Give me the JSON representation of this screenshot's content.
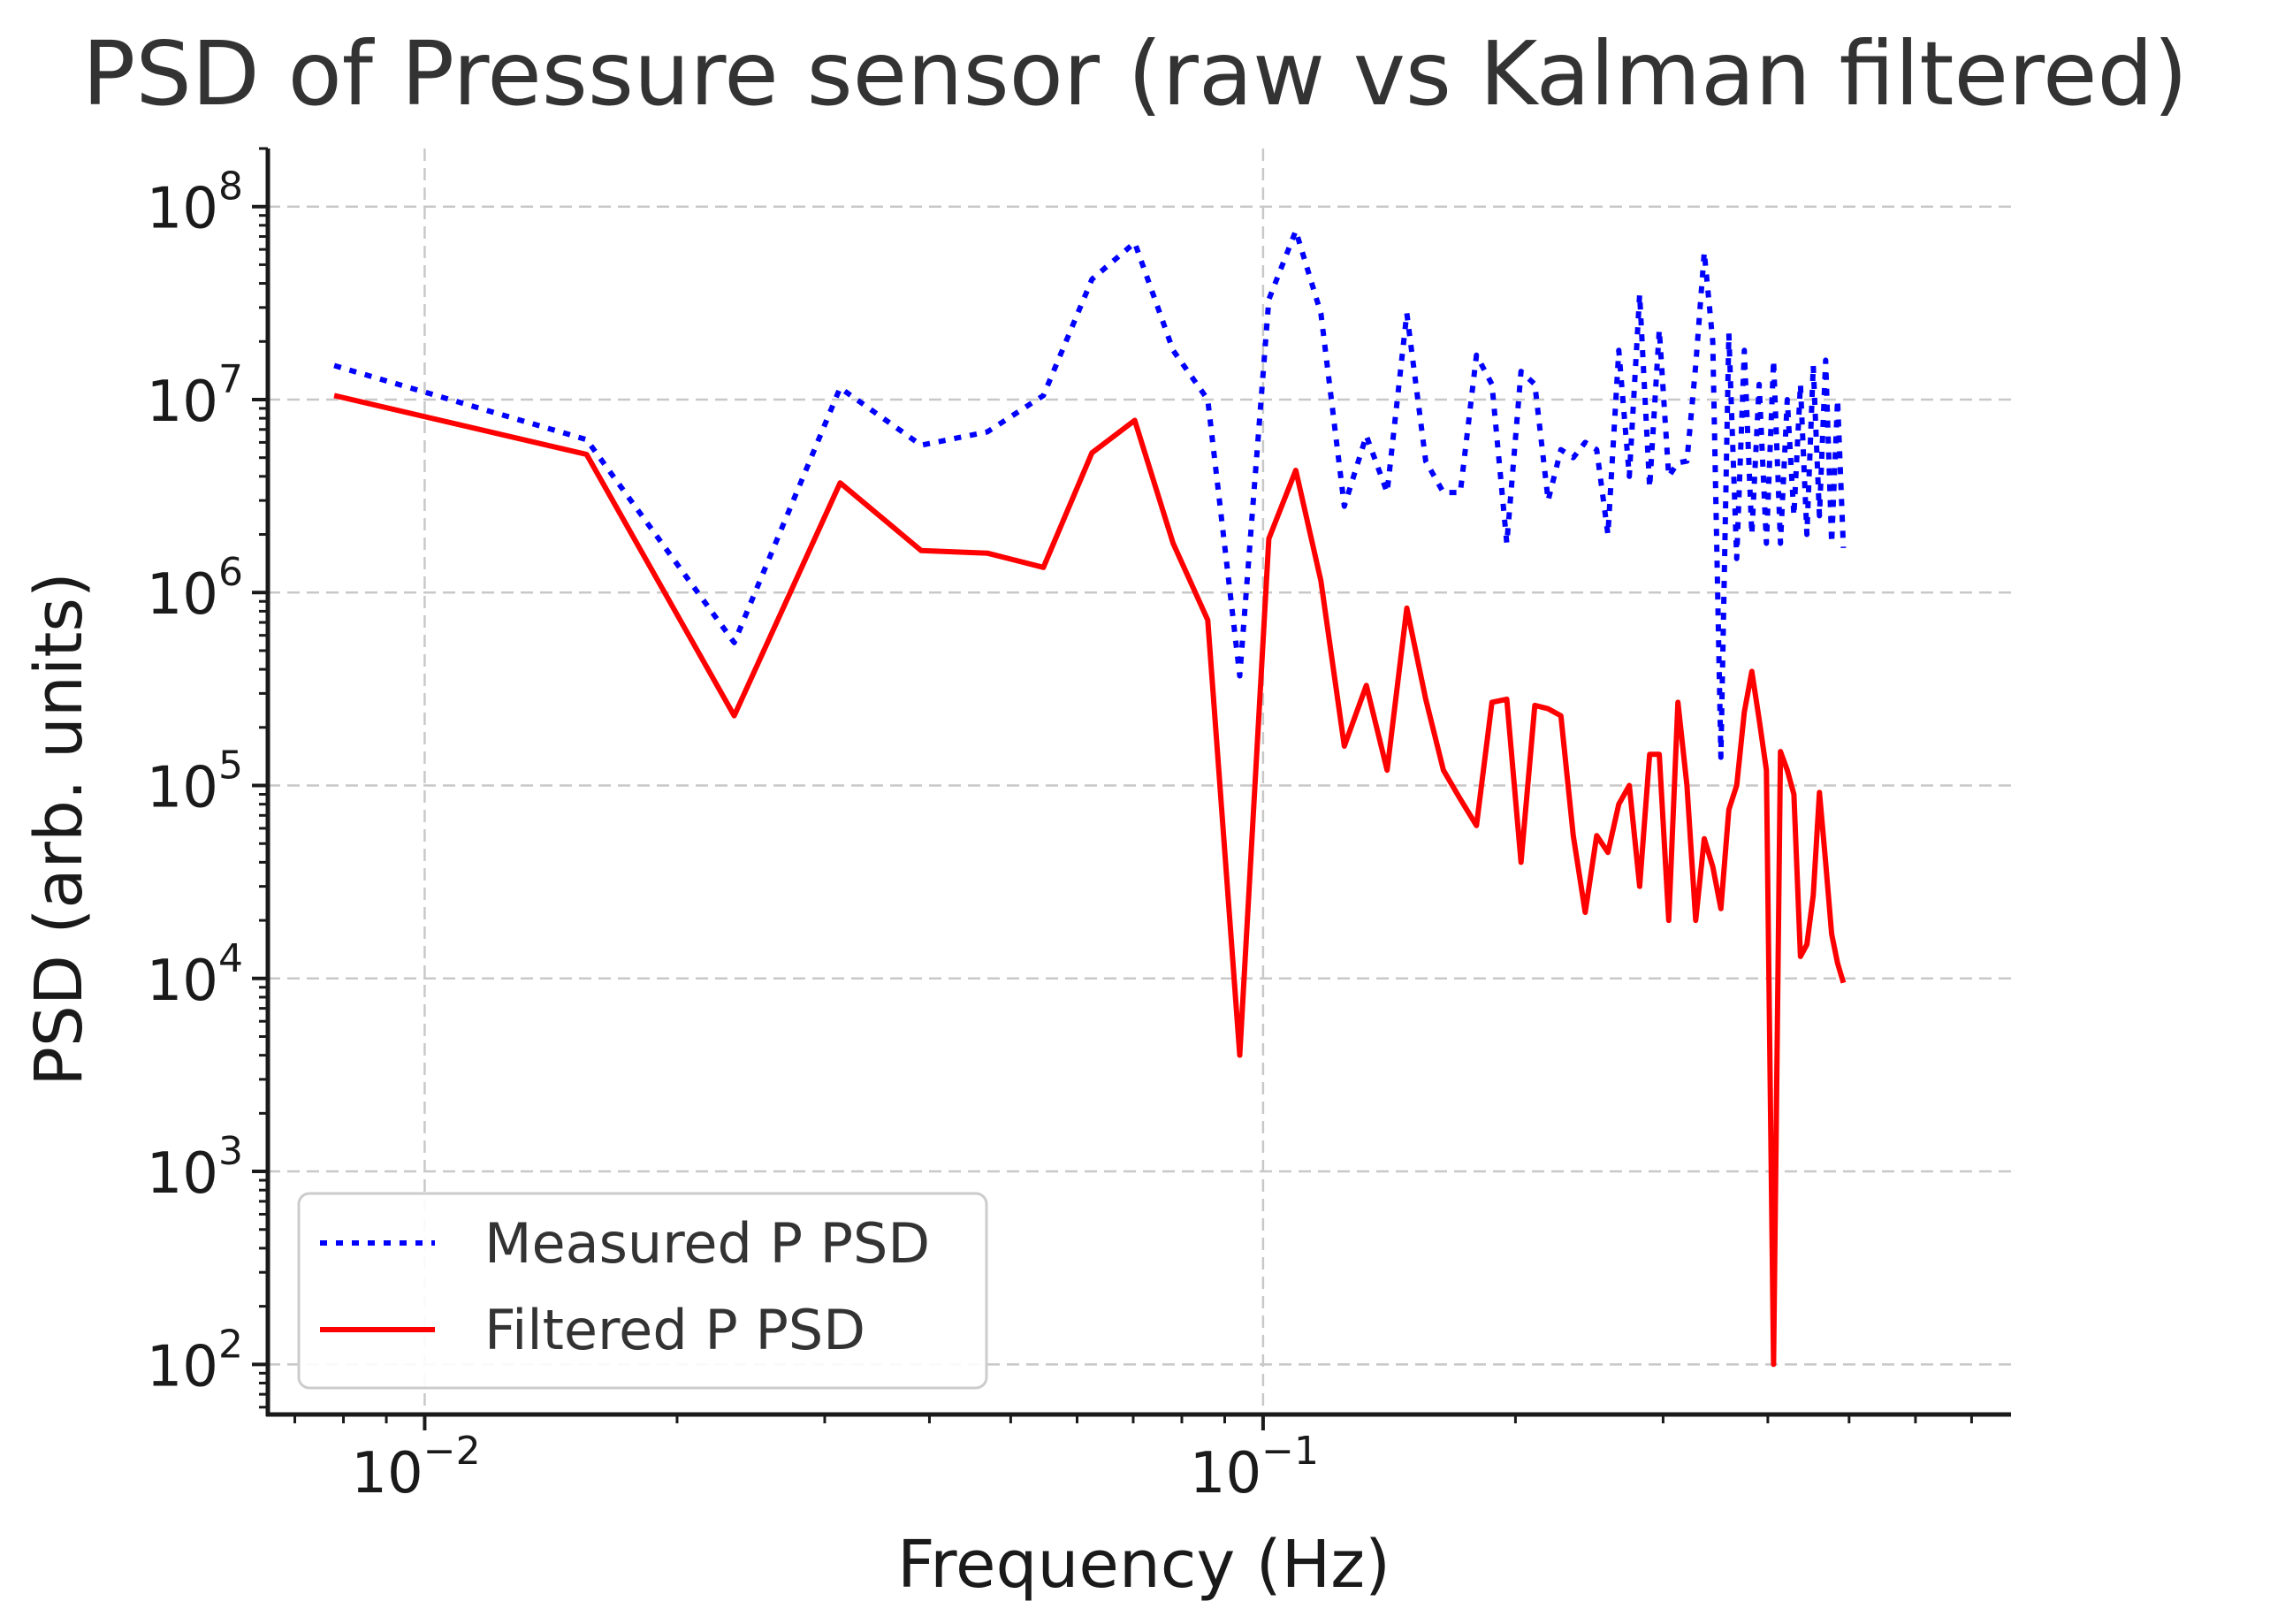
{
  "chart_data": {
    "type": "line",
    "title": "PSD of Pressure sensor (raw vs Kalman filtered)",
    "xlabel": "Frequency (Hz)",
    "ylabel": "PSD (arb. units)",
    "xscale": "log",
    "yscale": "log",
    "xlim": [
      0.0065,
      0.78
    ],
    "ylim": [
      55,
      200000000
    ],
    "grid": true,
    "legend_position": "lower-left",
    "x_ticks": [
      {
        "base": "10",
        "exp": "−2",
        "value": 0.01
      },
      {
        "base": "10",
        "exp": "−1",
        "value": 0.1
      }
    ],
    "y_ticks": [
      {
        "base": "10",
        "exp": "2",
        "value": 100
      },
      {
        "base": "10",
        "exp": "3",
        "value": 1000
      },
      {
        "base": "10",
        "exp": "4",
        "value": 10000
      },
      {
        "base": "10",
        "exp": "5",
        "value": 100000
      },
      {
        "base": "10",
        "exp": "6",
        "value": 1000000
      },
      {
        "base": "10",
        "exp": "7",
        "value": 10000000
      },
      {
        "base": "10",
        "exp": "8",
        "value": 100000000
      }
    ],
    "series": [
      {
        "name": "Measured P PSD",
        "color": "#0000ff",
        "style": "dotted",
        "x": [
          0.0078,
          0.0156,
          0.0234,
          0.0313,
          0.0391,
          0.0469,
          0.0547,
          0.0625,
          0.0703,
          0.0781,
          0.0859,
          0.0938,
          0.1016,
          0.1094,
          0.1172,
          0.125,
          0.1328,
          0.1406,
          0.1484,
          0.1563,
          0.1641,
          0.1719,
          0.1797,
          0.1875,
          0.1953,
          0.2031,
          0.2109,
          0.2188,
          0.2266,
          0.2344,
          0.2422,
          0.25,
          0.2578,
          0.2656,
          0.2734,
          0.2813,
          0.2891,
          0.2969,
          0.3047,
          0.3125,
          0.3203,
          0.3281,
          0.3359,
          0.3438,
          0.3516,
          0.3594,
          0.3672,
          0.375,
          0.3828,
          0.3906,
          0.3984,
          0.4063,
          0.4141,
          0.4219,
          0.4297,
          0.4375,
          0.4453,
          0.4531,
          0.4609,
          0.4688,
          0.4766,
          0.4844,
          0.4922
        ],
        "y": [
          15000000,
          6200000,
          550000,
          11500000,
          5800000,
          6800000,
          10500000,
          42000000,
          65000000,
          18000000,
          10000000,
          370000,
          33000000,
          75000000,
          28000000,
          2800000,
          6500000,
          3300000,
          28000000,
          4800000,
          3300000,
          3300000,
          17000000,
          12000000,
          1800000,
          14000000,
          12000000,
          3000000,
          5500000,
          5000000,
          6000000,
          5500000,
          2000000,
          18000000,
          4000000,
          35000000,
          3500000,
          23000000,
          4000000,
          4700000,
          4800000,
          15000000,
          58000000,
          20000000,
          140000,
          22000000,
          1500000,
          18000000,
          2000000,
          12000000,
          1800000,
          16000000,
          1800000,
          10000000,
          2500000,
          12000000,
          2000000,
          15000000,
          2500000,
          16000000,
          1800000,
          10000000,
          1700000
        ]
      },
      {
        "name": "Filtered P PSD",
        "color": "#ff0000",
        "style": "solid",
        "x": [
          0.0078,
          0.0156,
          0.0234,
          0.0313,
          0.0391,
          0.0469,
          0.0547,
          0.0625,
          0.0703,
          0.0781,
          0.0859,
          0.0938,
          0.1016,
          0.1094,
          0.1172,
          0.125,
          0.1328,
          0.1406,
          0.1484,
          0.1563,
          0.1641,
          0.1719,
          0.1797,
          0.1875,
          0.1953,
          0.2031,
          0.2109,
          0.2188,
          0.2266,
          0.2344,
          0.2422,
          0.25,
          0.2578,
          0.2656,
          0.2734,
          0.2813,
          0.2891,
          0.2969,
          0.3047,
          0.3125,
          0.3203,
          0.3281,
          0.3359,
          0.3438,
          0.3516,
          0.3594,
          0.3672,
          0.375,
          0.3828,
          0.3906,
          0.3984,
          0.4063,
          0.4141,
          0.4219,
          0.4297,
          0.4375,
          0.4453,
          0.4531,
          0.4609,
          0.4688,
          0.4766,
          0.4844,
          0.4922
        ],
        "y": [
          10500000,
          5200000,
          230000,
          3700000,
          1650000,
          1600000,
          1350000,
          5300000,
          7800000,
          1800000,
          720000,
          4000,
          1900000,
          4300000,
          1150000,
          160000,
          330000,
          120000,
          830000,
          280000,
          120000,
          85000,
          62000,
          270000,
          280000,
          40000,
          260000,
          250000,
          230000,
          55000,
          22000,
          55000,
          45000,
          80000,
          100000,
          30000,
          145000,
          145000,
          20000,
          270000,
          100000,
          20000,
          53000,
          38000,
          23000,
          75000,
          100000,
          240000,
          390000,
          220000,
          120000,
          100,
          150000,
          120000,
          90000,
          13000,
          15000,
          27000,
          92000,
          40000,
          17000,
          12000,
          9500
        ]
      }
    ]
  }
}
